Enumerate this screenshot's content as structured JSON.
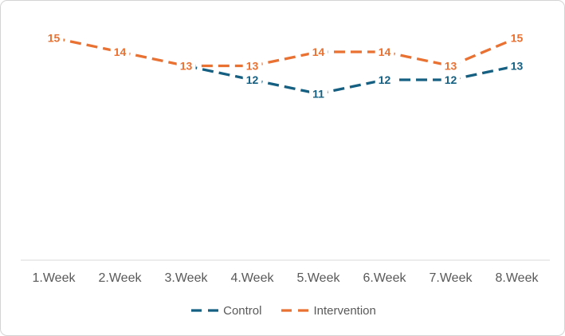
{
  "chart_data": {
    "type": "line",
    "title": "",
    "categories": [
      "1.Week",
      "2.Week",
      "3.Week",
      "4.Week",
      "5.Week",
      "6.Week",
      "7.Week",
      "8.Week"
    ],
    "series": [
      {
        "name": "Control",
        "color": "#156082",
        "line_style": "dashed",
        "values": [
          null,
          null,
          13,
          12,
          11,
          12,
          12,
          13
        ],
        "labels": [
          null,
          null,
          null,
          "12",
          "11",
          "12",
          "12",
          "13"
        ]
      },
      {
        "name": "Intervention",
        "color": "#E97132",
        "line_style": "dashed",
        "values": [
          15,
          14,
          13,
          13,
          14,
          14,
          13,
          15
        ],
        "labels": [
          "15",
          "14",
          "13",
          "13",
          "14",
          "14",
          "13",
          "15"
        ]
      }
    ],
    "legend_position": "bottom",
    "grid": false,
    "y_axis_visible": false,
    "axis_line_color": "#D9D9D9",
    "axis_text_color": "#595959"
  }
}
